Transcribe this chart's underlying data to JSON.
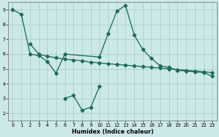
{
  "title": "",
  "xlabel": "Humidex (Indice chaleur)",
  "bg_color": "#cce8e8",
  "grid_color": "#aacccc",
  "line_color": "#1a6b5a",
  "xlim": [
    -0.5,
    23.5
  ],
  "ylim": [
    1.5,
    9.5
  ],
  "yticks": [
    2,
    3,
    4,
    5,
    6,
    7,
    8,
    9
  ],
  "xticks": [
    0,
    1,
    2,
    3,
    4,
    5,
    6,
    7,
    8,
    9,
    10,
    11,
    12,
    13,
    14,
    15,
    16,
    17,
    18,
    19,
    20,
    21,
    22,
    23
  ],
  "line1_x": [
    0,
    1,
    2,
    3,
    4,
    5,
    6,
    10,
    11,
    12,
    13,
    14,
    15,
    16,
    17,
    18,
    19,
    20,
    21,
    22,
    23
  ],
  "line1_y": [
    9.0,
    8.7,
    6.0,
    5.9,
    5.5,
    4.7,
    6.0,
    5.8,
    7.4,
    8.9,
    9.3,
    7.3,
    6.3,
    5.7,
    5.2,
    5.1,
    4.9,
    4.85,
    4.8,
    4.75,
    4.5
  ],
  "line2_x": [
    2,
    3,
    4,
    5,
    6,
    7,
    8,
    9,
    10,
    11,
    12,
    13,
    14,
    15,
    16,
    17,
    18,
    19,
    20,
    21,
    22,
    23
  ],
  "line2_y": [
    6.7,
    6.0,
    5.85,
    5.75,
    5.65,
    5.6,
    5.55,
    5.45,
    5.4,
    5.35,
    5.3,
    5.25,
    5.2,
    5.15,
    5.1,
    5.05,
    5.0,
    4.95,
    4.9,
    4.85,
    4.8,
    4.75
  ],
  "line3_x": [
    6,
    7,
    8,
    9,
    10
  ],
  "line3_y": [
    3.0,
    3.2,
    2.2,
    2.4,
    3.8
  ],
  "marker_size": 2.5,
  "linewidth": 1.0,
  "tick_fontsize": 5.0,
  "xlabel_fontsize": 6.0
}
